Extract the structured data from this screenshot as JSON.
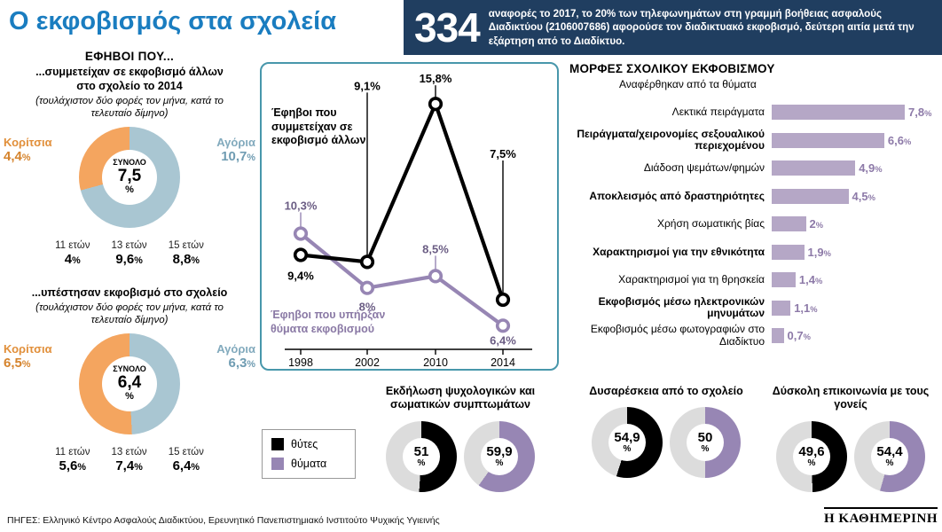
{
  "title": "Ο εκφοβισμός στα σχολεία",
  "banner": {
    "number": "334",
    "text": "αναφορές το 2017, το 20% των τηλεφωνημάτων στη γραμμή βοήθειας ασφαλούς Διαδικτύου (2106007686) αφορούσε τον διαδικτυακό εκφοβισμό, δεύτερη αιτία μετά την εξάρτηση από το Διαδίκτυο."
  },
  "section_heading": "ΕΦΗΒΟΙ ΠΟΥ...",
  "colors": {
    "title_blue": "#1a7dc0",
    "banner_bg": "#203e60",
    "girls_orange": "#f4a55f",
    "boys_blue": "#a9c6d2",
    "bar_purple": "#b5a7c6",
    "victims_purple": "#9786b4",
    "frame_teal": "#4897ab",
    "donut_rest": "#dcdcdc"
  },
  "chart_data": [
    {
      "id": "donut_bullies_2014",
      "type": "pie",
      "title": "...συμμετείχαν σε εκφοβισμό άλλων στο σχολείο το 2014",
      "note": "(τουλάχιστον δύο φορές τον μήνα, κατά το τελευταίο δίμηνο)",
      "center_label": "ΣΥΝΟΛΟ",
      "center_value": "7,5",
      "center_unit": "%",
      "slices": [
        {
          "label": "Αγόρια",
          "value": 10.7,
          "display": "10,7%",
          "color": "#a9c6d2"
        },
        {
          "label": "Κορίτσια",
          "value": 4.4,
          "display": "4,4%",
          "color": "#f4a55f"
        }
      ],
      "by_age": [
        {
          "label": "11 ετών",
          "display": "4%"
        },
        {
          "label": "13 ετών",
          "display": "9,6%"
        },
        {
          "label": "15 ετών",
          "display": "8,8%"
        }
      ]
    },
    {
      "id": "donut_victims",
      "type": "pie",
      "title": "...υπέστησαν εκφοβισμό στο σχολείο",
      "note": "(τουλάχιστον δύο φορές τον μήνα, κατά το τελευταίο δίμηνο)",
      "center_label": "ΣΥΝΟΛΟ",
      "center_value": "6,4",
      "center_unit": "%",
      "slices": [
        {
          "label": "Αγόρια",
          "value": 6.3,
          "display": "6,3%",
          "color": "#a9c6d2"
        },
        {
          "label": "Κορίτσια",
          "value": 6.5,
          "display": "6,5%",
          "color": "#f4a55f"
        }
      ],
      "by_age": [
        {
          "label": "11 ετών",
          "display": "5,6%"
        },
        {
          "label": "13 ετών",
          "display": "7,4%"
        },
        {
          "label": "15 ετών",
          "display": "6,4%"
        }
      ]
    },
    {
      "id": "trend",
      "type": "line",
      "x": [
        "1998",
        "2002",
        "2010",
        "2014"
      ],
      "ylim": [
        5.5,
        16.5
      ],
      "series": [
        {
          "name": "Έφηβοι που συμμετείχαν σε εκφοβισμό άλλων",
          "color": "#000000",
          "points": [
            {
              "v": 9.4,
              "label": "9,4%",
              "dy": 24
            },
            {
              "v": 9.1,
              "label": "9,1%",
              "dy": -198
            },
            {
              "v": 15.8,
              "label": "15,8%",
              "dy": -28
            },
            {
              "v": 7.5,
              "label": "7,5%",
              "dy": -164
            }
          ]
        },
        {
          "name": "Έφηβοι που υπήρξαν θύματα εκφοβισμού",
          "color": "#9786b4",
          "points": [
            {
              "v": 10.3,
              "label": "10,3%",
              "dy": -31
            },
            {
              "v": 8,
              "label": "8%",
              "dy": 22
            },
            {
              "v": 8.5,
              "label": "8,5%",
              "dy": -30
            },
            {
              "v": 6.4,
              "label": "6,4%",
              "dy": 17
            }
          ]
        }
      ]
    },
    {
      "id": "forms",
      "type": "bar",
      "title": "ΜΟΡΦΕΣ ΣΧΟΛΙΚΟΥ ΕΚΦΟΒΙΣΜΟΥ",
      "subtitle": "Αναφέρθηκαν από τα θύματα",
      "xmax": 7.8,
      "items": [
        {
          "label": "Λεκτικά πειράγματα",
          "value": 7.8,
          "display": "7,8%",
          "bold": false
        },
        {
          "label": "Πειράγματα/χειρονομίες σεξουαλικού περιεχομένου",
          "value": 6.6,
          "display": "6,6%",
          "bold": true
        },
        {
          "label": "Διάδοση ψεμάτων/φημών",
          "value": 4.9,
          "display": "4,9%",
          "bold": false
        },
        {
          "label": "Αποκλεισμός από δραστηριότητες",
          "value": 4.5,
          "display": "4,5%",
          "bold": true
        },
        {
          "label": "Χρήση σωματικής βίας",
          "value": 2,
          "display": "2%",
          "bold": false
        },
        {
          "label": "Χαρακτηρισμοί για την εθνικότητα",
          "value": 1.9,
          "display": "1,9%",
          "bold": true
        },
        {
          "label": "Χαρακτηρισμοί για τη θρησκεία",
          "value": 1.4,
          "display": "1,4%",
          "bold": false
        },
        {
          "label": "Εκφοβισμός μέσω ηλεκτρονικών μηνυμάτων",
          "value": 1.1,
          "display": "1,1%",
          "bold": true
        },
        {
          "label": "Εκφοβισμός μέσω φωτογραφιών στο Διαδίκτυο",
          "value": 0.7,
          "display": "0,7%",
          "bold": false
        }
      ]
    },
    {
      "id": "comparison",
      "type": "pie-pairs",
      "legend": [
        {
          "label": "θύτες",
          "color": "#000000"
        },
        {
          "label": "θύματα",
          "color": "#9786b4"
        }
      ],
      "groups": [
        {
          "title": "Εκδήλωση ψυχολογικών και σωματικών συμπτωμάτων",
          "values": [
            {
              "name": "θύτες",
              "value": 51,
              "display": "51"
            },
            {
              "name": "θύματα",
              "value": 59.9,
              "display": "59,9"
            }
          ]
        },
        {
          "title": "Δυσαρέσκεια από το σχολείο",
          "values": [
            {
              "name": "θύτες",
              "value": 54.9,
              "display": "54,9"
            },
            {
              "name": "θύματα",
              "value": 50,
              "display": "50"
            }
          ]
        },
        {
          "title": "Δύσκολη επικοινωνία με τους γονείς",
          "values": [
            {
              "name": "θύτες",
              "value": 49.6,
              "display": "49,6"
            },
            {
              "name": "θύματα",
              "value": 54.4,
              "display": "54,4"
            }
          ]
        }
      ]
    }
  ],
  "footer": {
    "sources": "ΠΗΓΕΣ: Ελληνικό Κέντρο Ασφαλούς Διαδικτύου, Ερευνητικό Πανεπιστημιακό Ινστιτούτο Ψυχικής Υγιεινής",
    "brand": "Η ΚΑΘΗΜΕΡΙΝΗ"
  }
}
